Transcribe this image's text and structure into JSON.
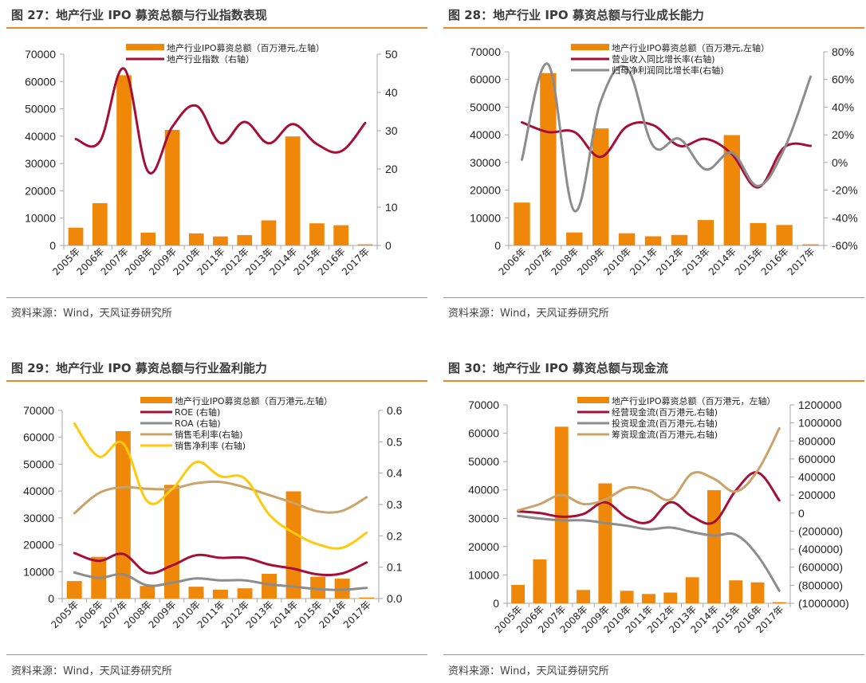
{
  "source_note": "资料来源：Wind，天风证券研究所",
  "colors": {
    "bar": "#ef8709",
    "red": "#a50f37",
    "gray": "#8c8c8c",
    "tan": "#c9a36a",
    "yellow": "#ffc90e",
    "accent_rule": "#e88a2a",
    "neg_label": "#e00000"
  },
  "chart_data": [
    {
      "id": "fig27",
      "type": "bar+line",
      "title": "图 27：地产行业 IPO 募资总额与行业指数表现",
      "categories": [
        "2005年",
        "2006年",
        "2007年",
        "2008年",
        "2009年",
        "2010年",
        "2011年",
        "2012年",
        "2013年",
        "2014年",
        "2015年",
        "2016年",
        "2017年"
      ],
      "left_axis": {
        "ylim": [
          0,
          70000
        ],
        "ticks": [
          "0",
          "10000",
          "20000",
          "30000",
          "40000",
          "50000",
          "60000",
          "70000"
        ]
      },
      "right_axis": {
        "ylim": [
          0,
          50
        ],
        "ticks": [
          "0",
          "10",
          "20",
          "30",
          "40",
          "50"
        ]
      },
      "series": [
        {
          "name": "地产行业IPO募资总额（百万港元,左轴）",
          "kind": "bar",
          "axis": "left",
          "color": "bar",
          "values": [
            6500,
            15500,
            62300,
            4700,
            42300,
            4400,
            3300,
            3800,
            9200,
            39900,
            8100,
            7400,
            400
          ]
        },
        {
          "name": "地产行业指数（右轴）",
          "kind": "line",
          "axis": "right",
          "color": "red",
          "values": [
            27.8,
            27.2,
            46.2,
            19.3,
            31.0,
            36.5,
            26.8,
            32.3,
            26.7,
            31.7,
            26.5,
            24.6,
            32.0
          ]
        }
      ]
    },
    {
      "id": "fig28",
      "type": "bar+line",
      "title": "图 28：地产行业 IPO 募资总额与行业成长能力",
      "categories": [
        "2006年",
        "2007年",
        "2008年",
        "2009年",
        "2010年",
        "2011年",
        "2012年",
        "2013年",
        "2014年",
        "2015年",
        "2016年",
        "2017年"
      ],
      "left_axis": {
        "ylim": [
          0,
          70000
        ],
        "ticks": [
          "0",
          "10000",
          "20000",
          "30000",
          "40000",
          "50000",
          "60000",
          "70000"
        ]
      },
      "right_axis": {
        "ylim": [
          -60,
          80
        ],
        "ticks": [
          "-60%",
          "-40%",
          "-20%",
          "0%",
          "20%",
          "40%",
          "60%",
          "80%"
        ]
      },
      "series": [
        {
          "name": "地产行业IPO募资总额（百万港元,左轴）",
          "kind": "bar",
          "axis": "left",
          "color": "bar",
          "values": [
            15500,
            62300,
            4700,
            42300,
            4400,
            3300,
            3800,
            9200,
            39900,
            8100,
            7400,
            400
          ]
        },
        {
          "name": "营业收入同比增长率(右轴)",
          "kind": "line",
          "axis": "right",
          "color": "red",
          "values": [
            29,
            22,
            22,
            4,
            26,
            27,
            12,
            17,
            6,
            -18,
            11,
            12
          ]
        },
        {
          "name": "归母净利润同比增长率(右轴)",
          "kind": "line",
          "axis": "right",
          "color": "gray",
          "values": [
            2,
            71,
            -35,
            44,
            68,
            12,
            17,
            -5,
            7,
            -17,
            10,
            62
          ]
        }
      ]
    },
    {
      "id": "fig29",
      "type": "bar+line",
      "title": "图 29：地产行业 IPO 募资总额与行业盈利能力",
      "categories": [
        "2005年",
        "2006年",
        "2007年",
        "2008年",
        "2009年",
        "2010年",
        "2011年",
        "2012年",
        "2013年",
        "2014年",
        "2015年",
        "2016年",
        "2017年"
      ],
      "left_axis": {
        "ylim": [
          0,
          70000
        ],
        "ticks": [
          "0",
          "10000",
          "20000",
          "30000",
          "40000",
          "50000",
          "60000",
          "70000"
        ]
      },
      "right_axis": {
        "ylim": [
          0,
          0.6
        ],
        "ticks": [
          "0.0",
          "0.1",
          "0.2",
          "0.3",
          "0.4",
          "0.5",
          "0.6"
        ]
      },
      "series": [
        {
          "name": "地产行业IPO募资总额（百万港元,左轴）",
          "kind": "bar",
          "axis": "left",
          "color": "bar",
          "values": [
            6500,
            15500,
            62300,
            4700,
            42300,
            4400,
            3300,
            3800,
            9200,
            39900,
            8100,
            7400,
            400
          ]
        },
        {
          "name": "ROE (右轴)",
          "kind": "line",
          "axis": "right",
          "color": "red",
          "values": [
            0.145,
            0.12,
            0.142,
            0.082,
            0.105,
            0.138,
            0.13,
            0.13,
            0.108,
            0.095,
            0.077,
            0.08,
            0.115
          ]
        },
        {
          "name": "ROA (右轴)",
          "kind": "line",
          "axis": "right",
          "color": "gray",
          "values": [
            0.083,
            0.066,
            0.077,
            0.042,
            0.05,
            0.064,
            0.058,
            0.058,
            0.045,
            0.038,
            0.03,
            0.028,
            0.034
          ]
        },
        {
          "name": "销售毛利率(右轴)",
          "kind": "line",
          "axis": "right",
          "color": "tan",
          "values": [
            0.272,
            0.336,
            0.355,
            0.35,
            0.35,
            0.368,
            0.372,
            0.355,
            0.33,
            0.305,
            0.278,
            0.28,
            0.323
          ]
        },
        {
          "name": "销售净利率 (右轴)",
          "kind": "line",
          "axis": "right",
          "color": "yellow",
          "values": [
            0.558,
            0.453,
            0.495,
            0.31,
            0.348,
            0.435,
            0.39,
            0.383,
            0.268,
            0.21,
            0.173,
            0.162,
            0.21
          ]
        }
      ]
    },
    {
      "id": "fig30",
      "type": "bar+line",
      "title": "图 30：地产行业 IPO 募资总额与现金流",
      "categories": [
        "2005年",
        "2006年",
        "2007年",
        "2008年",
        "2009年",
        "2010年",
        "2011年",
        "2012年",
        "2013年",
        "2014年",
        "2015年",
        "2016年",
        "2017年"
      ],
      "left_axis": {
        "ylim": [
          0,
          70000
        ],
        "ticks": [
          "0",
          "10000",
          "20000",
          "30000",
          "40000",
          "50000",
          "60000",
          "70000"
        ]
      },
      "right_axis": {
        "ylim": [
          -1000000,
          1200000
        ],
        "ticks": [
          "(1000000)",
          "(800000)",
          "(600000)",
          "(400000)",
          "(200000)",
          "0",
          "200000",
          "400000",
          "600000",
          "800000",
          "1000000",
          "1200000"
        ]
      },
      "series": [
        {
          "name": "地产行业IPO募资总额（百万港元，左轴）",
          "kind": "bar",
          "axis": "left",
          "color": "bar",
          "values": [
            6500,
            15500,
            62300,
            4700,
            42300,
            4400,
            3300,
            3800,
            9200,
            39900,
            8100,
            7400,
            400
          ]
        },
        {
          "name": "经营现金流(百万港元,右轴)",
          "kind": "line",
          "axis": "right",
          "color": "red",
          "values": [
            20000,
            0,
            -40000,
            -10000,
            120000,
            -50000,
            -100000,
            120000,
            -40000,
            -100000,
            250000,
            450000,
            140000
          ]
        },
        {
          "name": "投资现金流(百万港元,右轴)",
          "kind": "line",
          "axis": "right",
          "color": "gray",
          "values": [
            -30000,
            -60000,
            -80000,
            -80000,
            -110000,
            -140000,
            -180000,
            -160000,
            -210000,
            -250000,
            -240000,
            -470000,
            -860000
          ]
        },
        {
          "name": "筹资现金流(百万港元,右轴)",
          "kind": "line",
          "axis": "right",
          "color": "tan",
          "values": [
            30000,
            100000,
            200000,
            100000,
            150000,
            280000,
            250000,
            150000,
            440000,
            380000,
            240000,
            470000,
            940000
          ]
        }
      ]
    }
  ]
}
